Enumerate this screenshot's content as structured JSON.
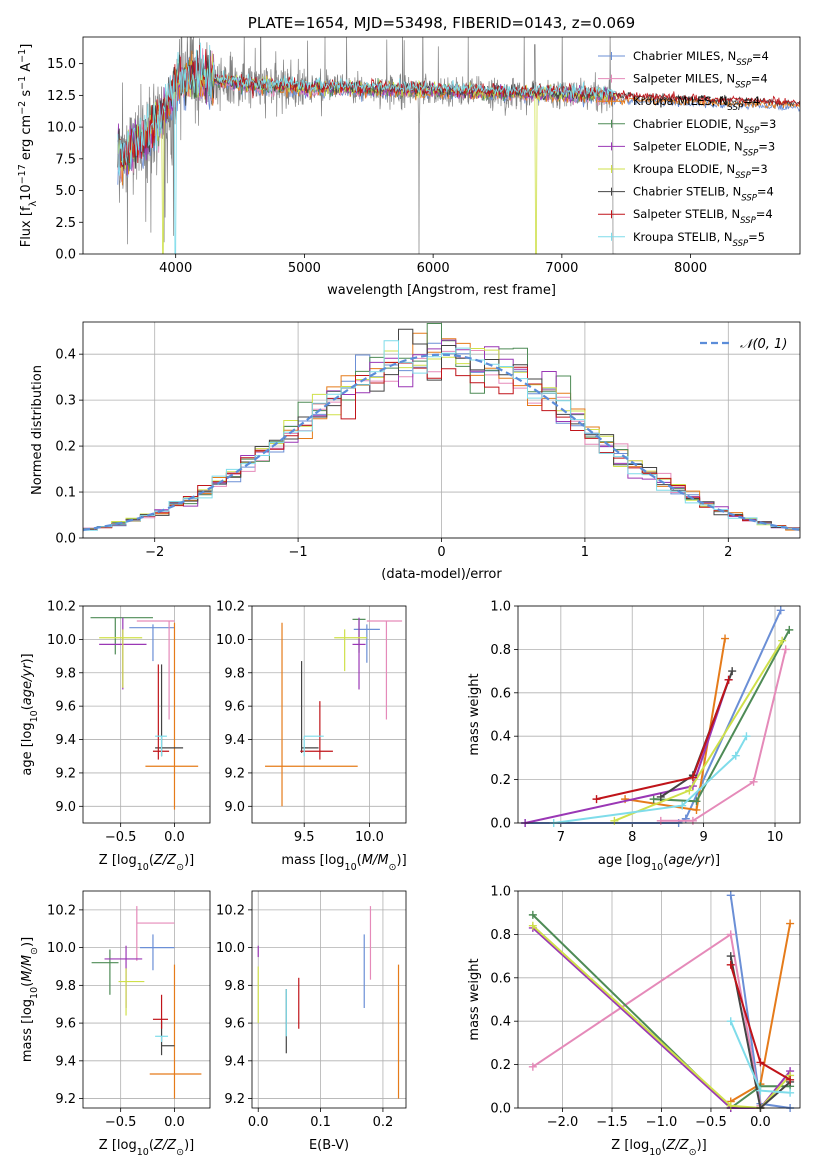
{
  "chart_data": [
    {
      "type": "line",
      "id": "spectrum",
      "title": "PLATE=1654, MJD=53498, FIBERID=0143, z=0.069",
      "xlabel": "wavelength [Angstrom, rest frame]",
      "ylabel": "Flux [f_λ 10^-17 erg cm^-2 s^-1 A^-1]",
      "xlim": [
        3280,
        8850
      ],
      "ylim": [
        0,
        17.1
      ],
      "xticks": [
        4000,
        5000,
        6000,
        7000,
        8000
      ],
      "yticks": [
        0.0,
        2.5,
        5.0,
        7.5,
        10.0,
        12.5,
        15.0
      ],
      "grid": false,
      "legend_position": "top-right",
      "series": [
        {
          "name": "Chabrier MILES, N_SSP=4",
          "color": "#6b8fd6"
        },
        {
          "name": "Salpeter MILES, N_SSP=4",
          "color": "#e58ab9"
        },
        {
          "name": "Kroupa MILES, N_SSP=4",
          "color": "#e57b1a"
        },
        {
          "name": "Chabrier ELODIE, N_SSP=3",
          "color": "#4e8b56"
        },
        {
          "name": "Salpeter ELODIE, N_SSP=3",
          "color": "#9a37b5"
        },
        {
          "name": "Kroupa ELODIE, N_SSP=3",
          "color": "#cfe04a"
        },
        {
          "name": "Chabrier STELIB, N_SSP=4",
          "color": "#444444"
        },
        {
          "name": "Salpeter STELIB, N_SSP=4",
          "color": "#c0141a"
        },
        {
          "name": "Kroupa STELIB, N_SSP=5",
          "color": "#7fdcea"
        }
      ],
      "data_color": "#808080",
      "continuum_shape": {
        "x": [
          3500,
          3600,
          3700,
          3800,
          3900,
          4000,
          4100,
          4300,
          4600,
          5000,
          5500,
          6000,
          6500,
          7000,
          7400
        ],
        "y": [
          8.0,
          7.6,
          8.6,
          9.6,
          11.0,
          13.3,
          14.0,
          13.7,
          13.3,
          13.1,
          13.0,
          12.9,
          12.7,
          12.6,
          12.5
        ]
      },
      "model_continuum_shape": {
        "x": [
          7400,
          7800,
          8200,
          8850
        ],
        "y": [
          12.4,
          12.2,
          12.0,
          11.8
        ]
      }
    },
    {
      "type": "histogram",
      "id": "residuals",
      "xlabel": "(data-model)/error",
      "ylabel": "Normed distribution",
      "xlim": [
        -2.5,
        2.5
      ],
      "ylim": [
        0,
        0.47
      ],
      "xticks": [
        -2,
        -1,
        0,
        1,
        2
      ],
      "yticks": [
        0.0,
        0.1,
        0.2,
        0.3,
        0.4
      ],
      "grid": true,
      "legend_position": "top-right",
      "reference_curve": {
        "name": "𝒩(0, 1)",
        "color": "#5b8dd9",
        "style": "dashed"
      },
      "bin_width": 0.1
    },
    {
      "type": "scatter",
      "id": "age_vs_Z",
      "xlabel": "Z [log10(Z/Z⊙)]",
      "ylabel": "age [log10(age/yr)]",
      "xlim": [
        -0.85,
        0.33
      ],
      "ylim": [
        8.9,
        10.2
      ],
      "xticks": [
        -0.5,
        0.0
      ],
      "yticks": [
        9.0,
        9.2,
        9.4,
        9.6,
        9.8,
        10.0,
        10.2
      ],
      "grid": true,
      "points": [
        {
          "color": "#6b8fd6",
          "x": -0.2,
          "y": 10.07,
          "xerr": [
            0.22,
            0.2
          ],
          "yerr": [
            0.2,
            0.02
          ]
        },
        {
          "color": "#e58ab9",
          "x": -0.05,
          "y": 10.11,
          "xerr": [
            0.3,
            0.05
          ],
          "yerr": [
            0.59,
            0.0
          ]
        },
        {
          "color": "#e57b1a",
          "x": 0.0,
          "y": 9.24,
          "xerr": [
            0.27,
            0.22
          ],
          "yerr": [
            0.26,
            0.86
          ]
        },
        {
          "color": "#4e8b56",
          "x": -0.55,
          "y": 10.13,
          "xerr": [
            0.23,
            0.35
          ],
          "yerr": [
            0.22,
            0.0
          ]
        },
        {
          "color": "#9a37b5",
          "x": -0.48,
          "y": 9.97,
          "xerr": [
            0.22,
            0.22
          ],
          "yerr": [
            0.27,
            0.16
          ]
        },
        {
          "color": "#cfe04a",
          "x": -0.48,
          "y": 10.01,
          "xerr": [
            0.22,
            0.18
          ],
          "yerr": [
            0.3,
            0.05
          ]
        },
        {
          "color": "#444444",
          "x": -0.12,
          "y": 9.35,
          "xerr": [
            0.06,
            0.2
          ],
          "yerr": [
            0.05,
            0.5
          ]
        },
        {
          "color": "#c0141a",
          "x": -0.15,
          "y": 9.33,
          "xerr": [
            0.05,
            0.1
          ],
          "yerr": [
            0.05,
            0.52
          ]
        },
        {
          "color": "#7fdcea",
          "x": -0.12,
          "y": 9.42,
          "xerr": [
            0.06,
            0.05
          ],
          "yerr": [
            0.12,
            0.0
          ]
        }
      ]
    },
    {
      "type": "scatter",
      "id": "age_vs_mass",
      "xlabel": "mass [log10(M/M⊙)]",
      "ylabel": "",
      "xlim": [
        9.1,
        10.28
      ],
      "ylim": [
        8.9,
        10.2
      ],
      "xticks": [
        9.5,
        10.0
      ],
      "yticks": [
        9.0,
        9.2,
        9.4,
        9.6,
        9.8,
        10.0,
        10.2
      ],
      "grid": true,
      "points": [
        {
          "color": "#6b8fd6",
          "x": 9.98,
          "y": 10.06,
          "xerr": [
            0.1,
            0.1
          ],
          "yerr": [
            0.2,
            0.03
          ]
        },
        {
          "color": "#e58ab9",
          "x": 10.13,
          "y": 10.11,
          "xerr": [
            0.15,
            0.12
          ],
          "yerr": [
            0.59,
            0.0
          ]
        },
        {
          "color": "#e57b1a",
          "x": 9.33,
          "y": 9.24,
          "xerr": [
            0.13,
            0.58
          ],
          "yerr": [
            0.24,
            0.86
          ]
        },
        {
          "color": "#4e8b56",
          "x": 9.92,
          "y": 10.12,
          "xerr": [
            0.05,
            0.05
          ],
          "yerr": [
            0.2,
            0.0
          ]
        },
        {
          "color": "#9a37b5",
          "x": 9.92,
          "y": 9.97,
          "xerr": [
            0.05,
            0.05
          ],
          "yerr": [
            0.27,
            0.16
          ]
        },
        {
          "color": "#cfe04a",
          "x": 9.81,
          "y": 10.01,
          "xerr": [
            0.08,
            0.17
          ],
          "yerr": [
            0.2,
            0.05
          ]
        },
        {
          "color": "#444444",
          "x": 9.48,
          "y": 9.35,
          "xerr": [
            0.0,
            0.13
          ],
          "yerr": [
            0.03,
            0.52
          ]
        },
        {
          "color": "#c0141a",
          "x": 9.62,
          "y": 9.33,
          "xerr": [
            0.15,
            0.1
          ],
          "yerr": [
            0.05,
            0.3
          ]
        },
        {
          "color": "#7fdcea",
          "x": 9.5,
          "y": 9.42,
          "xerr": [
            0.0,
            0.15
          ],
          "yerr": [
            0.12,
            0.0
          ]
        }
      ]
    },
    {
      "type": "line",
      "id": "massweight_vs_age",
      "xlabel": "age [log10(age/yr)]",
      "ylabel": "mass weight",
      "xlim": [
        6.4,
        10.35
      ],
      "ylim": [
        0,
        1.0
      ],
      "xticks": [
        7,
        8,
        9,
        10
      ],
      "yticks": [
        0.0,
        0.2,
        0.4,
        0.6,
        0.8,
        1.0
      ],
      "grid": true,
      "series": [
        {
          "color": "#6b8fd6",
          "x": [
            6.5,
            8.65,
            8.75,
            10.08
          ],
          "y": [
            0.0,
            0.0,
            0.02,
            0.98
          ]
        },
        {
          "color": "#e58ab9",
          "x": [
            8.4,
            8.85,
            9.7,
            10.15
          ],
          "y": [
            0.01,
            0.01,
            0.19,
            0.8
          ]
        },
        {
          "color": "#e57b1a",
          "x": [
            7.9,
            8.9,
            9.3
          ],
          "y": [
            0.11,
            0.06,
            0.85
          ]
        },
        {
          "color": "#4e8b56",
          "x": [
            8.3,
            8.9,
            10.2
          ],
          "y": [
            0.11,
            0.1,
            0.89
          ]
        },
        {
          "color": "#9a37b5",
          "x": [
            6.5,
            8.85,
            9.35
          ],
          "y": [
            0.0,
            0.17,
            0.66
          ]
        },
        {
          "color": "#cfe04a",
          "x": [
            7.75,
            8.8,
            10.1
          ],
          "y": [
            0.01,
            0.15,
            0.84
          ]
        },
        {
          "color": "#444444",
          "x": [
            8.4,
            8.85,
            9.4
          ],
          "y": [
            0.12,
            0.22,
            0.7
          ]
        },
        {
          "color": "#c0141a",
          "x": [
            7.5,
            8.85,
            9.35
          ],
          "y": [
            0.11,
            0.21,
            0.66
          ]
        },
        {
          "color": "#7fdcea",
          "x": [
            6.9,
            8.7,
            9.45,
            9.6
          ],
          "y": [
            0.0,
            0.08,
            0.31,
            0.4
          ]
        }
      ]
    },
    {
      "type": "scatter",
      "id": "mass_vs_Z",
      "xlabel": "Z [log10(Z/Z⊙)]",
      "ylabel": "mass [log10(M/M⊙)]",
      "xlim": [
        -0.85,
        0.33
      ],
      "ylim": [
        9.15,
        10.3
      ],
      "xticks": [
        -0.5,
        0.0
      ],
      "yticks": [
        9.2,
        9.4,
        9.6,
        9.8,
        10.0,
        10.2
      ],
      "grid": true,
      "points": [
        {
          "color": "#6b8fd6",
          "x": -0.2,
          "y": 10.0,
          "xerr": [
            0.12,
            0.2
          ],
          "yerr": [
            0.12,
            0.07
          ]
        },
        {
          "color": "#e58ab9",
          "x": -0.35,
          "y": 10.13,
          "xerr": [
            0.0,
            0.35
          ],
          "yerr": [
            0.2,
            0.09
          ]
        },
        {
          "color": "#e57b1a",
          "x": 0.0,
          "y": 9.33,
          "xerr": [
            0.23,
            0.25
          ],
          "yerr": [
            0.13,
            0.58
          ]
        },
        {
          "color": "#4e8b56",
          "x": -0.6,
          "y": 9.92,
          "xerr": [
            0.17,
            0.08
          ],
          "yerr": [
            0.17,
            0.07
          ]
        },
        {
          "color": "#9a37b5",
          "x": -0.45,
          "y": 9.94,
          "xerr": [
            0.2,
            0.15
          ],
          "yerr": [
            0.26,
            0.07
          ]
        },
        {
          "color": "#cfe04a",
          "x": -0.45,
          "y": 9.82,
          "xerr": [
            0.07,
            0.17
          ],
          "yerr": [
            0.18,
            0.07
          ]
        },
        {
          "color": "#444444",
          "x": -0.12,
          "y": 9.48,
          "xerr": [
            0.0,
            0.12
          ],
          "yerr": [
            0.05,
            0.13
          ]
        },
        {
          "color": "#c0141a",
          "x": -0.12,
          "y": 9.62,
          "xerr": [
            0.08,
            0.06
          ],
          "yerr": [
            0.05,
            0.13
          ]
        },
        {
          "color": "#7fdcea",
          "x": -0.12,
          "y": 9.53,
          "xerr": [
            0.06,
            0.06
          ],
          "yerr": [
            0.03,
            0.0
          ]
        }
      ]
    },
    {
      "type": "scatter",
      "id": "mass_vs_ebv",
      "xlabel": "E(B-V)",
      "ylabel": "",
      "xlim": [
        -0.01,
        0.237
      ],
      "ylim": [
        9.15,
        10.3
      ],
      "xticks": [
        0.0,
        0.1,
        0.2
      ],
      "yticks": [
        9.2,
        9.4,
        9.6,
        9.8,
        10.0,
        10.2
      ],
      "grid": true,
      "points": [
        {
          "color": "#6b8fd6",
          "x": 0.17,
          "y": 9.87,
          "yerr": [
            0.19,
            0.2
          ]
        },
        {
          "color": "#e58ab9",
          "x": 0.18,
          "y": 10.04,
          "yerr": [
            0.21,
            0.18
          ]
        },
        {
          "color": "#e57b1a",
          "x": 0.225,
          "y": 9.55,
          "yerr": [
            0.35,
            0.36
          ]
        },
        {
          "color": "#9a37b5",
          "x": 0.0,
          "y": 9.95,
          "yerr": [
            0.0,
            0.06
          ]
        },
        {
          "color": "#cfe04a",
          "x": 0.0,
          "y": 9.75,
          "yerr": [
            0.15,
            0.15
          ]
        },
        {
          "color": "#444444",
          "x": 0.045,
          "y": 9.6,
          "yerr": [
            0.16,
            0.18
          ]
        },
        {
          "color": "#c0141a",
          "x": 0.065,
          "y": 9.7,
          "yerr": [
            0.13,
            0.14
          ]
        },
        {
          "color": "#7fdcea",
          "x": 0.045,
          "y": 9.65,
          "yerr": [
            0.12,
            0.13
          ]
        }
      ]
    },
    {
      "type": "line",
      "id": "massweight_vs_Z",
      "xlabel": "Z [log10(Z/Z⊙)]",
      "ylabel": "mass weight",
      "xlim": [
        -2.45,
        0.4
      ],
      "ylim": [
        0,
        1.0
      ],
      "xticks": [
        -2.0,
        -1.5,
        -1.0,
        -0.5,
        0.0
      ],
      "yticks": [
        0.0,
        0.2,
        0.4,
        0.6,
        0.8,
        1.0
      ],
      "grid": true,
      "series": [
        {
          "color": "#6b8fd6",
          "x": [
            -0.3,
            0.0,
            0.3
          ],
          "y": [
            0.98,
            0.02,
            0.0
          ]
        },
        {
          "color": "#e58ab9",
          "x": [
            -2.3,
            -0.3,
            0.0
          ],
          "y": [
            0.19,
            0.8,
            0.01
          ]
        },
        {
          "color": "#e57b1a",
          "x": [
            -0.3,
            0.0,
            0.3
          ],
          "y": [
            0.03,
            0.11,
            0.85
          ]
        },
        {
          "color": "#4e8b56",
          "x": [
            -2.3,
            -0.3,
            0.0,
            0.3
          ],
          "y": [
            0.89,
            0.0,
            0.1,
            0.1
          ]
        },
        {
          "color": "#9a37b5",
          "x": [
            -2.3,
            -0.3,
            0.0,
            0.3
          ],
          "y": [
            0.83,
            0.0,
            0.0,
            0.17
          ]
        },
        {
          "color": "#cfe04a",
          "x": [
            -2.3,
            -0.3,
            0.0,
            0.3
          ],
          "y": [
            0.84,
            0.01,
            0.0,
            0.15
          ]
        },
        {
          "color": "#444444",
          "x": [
            -0.3,
            0.0,
            0.3
          ],
          "y": [
            0.7,
            0.0,
            0.12
          ]
        },
        {
          "color": "#c0141a",
          "x": [
            -0.3,
            0.0,
            0.3
          ],
          "y": [
            0.66,
            0.21,
            0.13
          ]
        },
        {
          "color": "#7fdcea",
          "x": [
            -0.3,
            0.0,
            0.3
          ],
          "y": [
            0.4,
            0.08,
            0.07
          ]
        }
      ]
    }
  ]
}
